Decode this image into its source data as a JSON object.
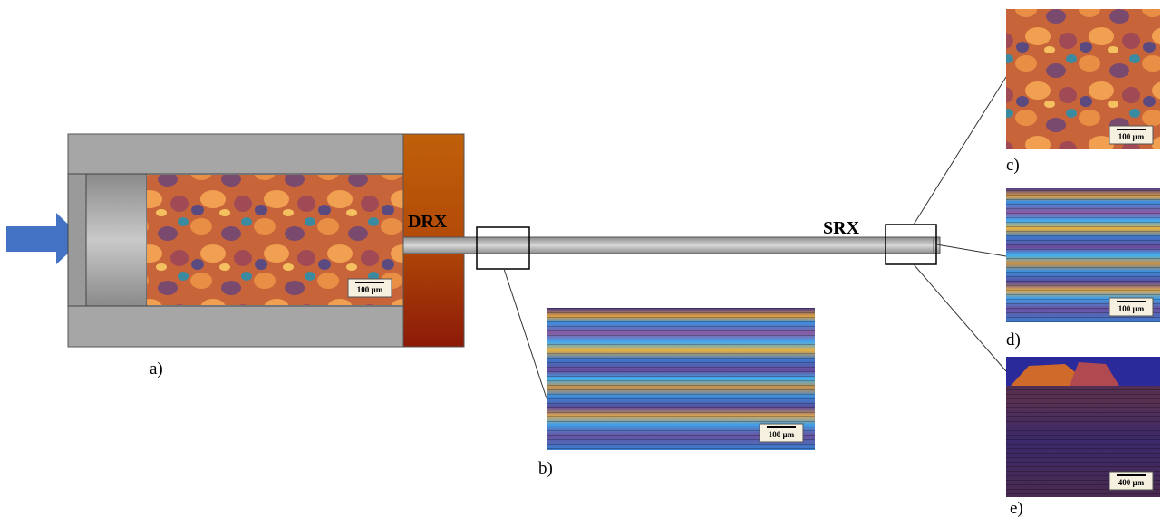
{
  "labels": {
    "drx": "DRX",
    "srx": "SRX"
  },
  "panels": [
    {
      "label": "a)",
      "scale": "100 µm"
    },
    {
      "label": "b)",
      "scale": "100 µm"
    },
    {
      "label": "c)",
      "scale": "100 µm"
    },
    {
      "label": "d)",
      "scale": "100 µm"
    },
    {
      "label": "e)",
      "scale": "400 µm"
    }
  ]
}
